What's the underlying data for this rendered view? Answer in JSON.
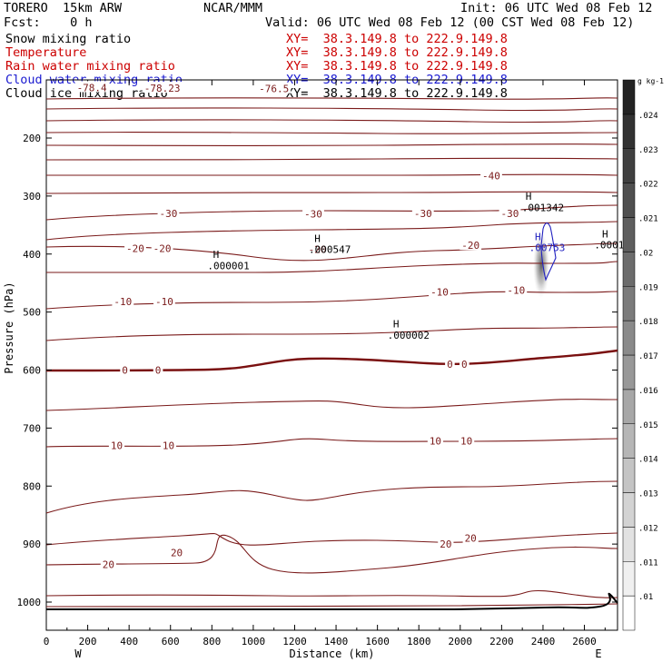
{
  "header": {
    "model": "TORERO  15km ARW",
    "center": "NCAR/MMM",
    "init": "Init: 06 UTC Wed 08 Feb 12",
    "fcst": "Fcst:    0 h",
    "valid": "Valid: 06 UTC Wed 08 Feb 12 (00 CST Wed 08 Feb 12)"
  },
  "fields": [
    {
      "name": "Snow mixing ratio",
      "xy": "XY=  38.3.149.8 to 222.9.149.8",
      "color": "black"
    },
    {
      "name": "Temperature",
      "xy": "XY=  38.3.149.8 to 222.9.149.8",
      "color": "red"
    },
    {
      "name": "Rain water mixing ratio",
      "xy": "XY=  38.3.149.8 to 222.9.149.8",
      "color": "red"
    },
    {
      "name": "Cloud water mixing ratio",
      "xy": "XY=  38.3.149.8 to 222.9.149.8",
      "color": "blue"
    },
    {
      "name": "Cloud ice mixing ratio",
      "xy": "XY=  38.3.149.8 to 222.9.149.8",
      "color": "black"
    }
  ],
  "chart_data": {
    "type": "contour",
    "xlabel": "Distance (km)",
    "ylabel": "Pressure (hPa)",
    "xlim": [
      0,
      2760
    ],
    "ylim": [
      1050,
      100
    ],
    "x_ticks": [
      0,
      200,
      400,
      600,
      800,
      1000,
      1200,
      1400,
      1600,
      1800,
      2000,
      2200,
      2400,
      2600
    ],
    "y_ticks": [
      200,
      300,
      400,
      500,
      600,
      700,
      800,
      900,
      1000
    ],
    "x_end_labels": {
      "left": "W",
      "right": "E"
    },
    "temperature_labels": [
      {
        "text": "-78.4",
        "x": 220,
        "p": 113
      },
      {
        "text": "-78.23",
        "x": 560,
        "p": 114
      },
      {
        "text": "-76.5",
        "x": 1100,
        "p": 115
      },
      {
        "text": "-40",
        "x": 2150,
        "p": 265
      },
      {
        "text": "-30",
        "x": 590,
        "p": 330
      },
      {
        "text": "-30",
        "x": 1290,
        "p": 331
      },
      {
        "text": "-30",
        "x": 1820,
        "p": 330
      },
      {
        "text": "-30",
        "x": 2240,
        "p": 330
      },
      {
        "text": "-20",
        "x": 430,
        "p": 390
      },
      {
        "text": "-20",
        "x": 560,
        "p": 390
      },
      {
        "text": "-20",
        "x": 1310,
        "p": 392
      },
      {
        "text": "-20",
        "x": 2050,
        "p": 385
      },
      {
        "text": "-10",
        "x": 370,
        "p": 482
      },
      {
        "text": "-10",
        "x": 570,
        "p": 482
      },
      {
        "text": "-10",
        "x": 1900,
        "p": 465
      },
      {
        "text": "-10",
        "x": 2270,
        "p": 462
      },
      {
        "text": "0",
        "x": 380,
        "p": 600
      },
      {
        "text": "0",
        "x": 540,
        "p": 600
      },
      {
        "text": "0",
        "x": 1950,
        "p": 590
      },
      {
        "text": "0",
        "x": 2020,
        "p": 590
      },
      {
        "text": "10",
        "x": 340,
        "p": 730
      },
      {
        "text": "10",
        "x": 590,
        "p": 730
      },
      {
        "text": "10",
        "x": 1880,
        "p": 722
      },
      {
        "text": "10",
        "x": 2030,
        "p": 722
      },
      {
        "text": "20",
        "x": 300,
        "p": 935
      },
      {
        "text": "20",
        "x": 630,
        "p": 915
      },
      {
        "text": "20",
        "x": 1930,
        "p": 900
      },
      {
        "text": "20",
        "x": 2050,
        "p": 890
      }
    ],
    "maxima_labels": [
      {
        "text": "H",
        "x": 820,
        "p": 400
      },
      {
        "text": ".000001",
        "x": 880,
        "p": 420
      },
      {
        "text": "H",
        "x": 1310,
        "p": 373
      },
      {
        "text": ".000547",
        "x": 1370,
        "p": 392
      },
      {
        "text": "H",
        "x": 2330,
        "p": 300
      },
      {
        "text": ".001342",
        "x": 2400,
        "p": 320
      },
      {
        "text": "H",
        "x": 2700,
        "p": 365
      },
      {
        "text": ".0001",
        "x": 2720,
        "p": 384
      },
      {
        "text": "H",
        "x": 1690,
        "p": 520
      },
      {
        "text": ".000002",
        "x": 1750,
        "p": 540
      }
    ],
    "cloud_water_labels": [
      {
        "text": "H",
        "x": 2375,
        "p": 370
      },
      {
        "text": ".00753",
        "x": 2420,
        "p": 389
      }
    ],
    "colorbar": {
      "label": "g kg-1",
      "ticks": [
        ".01",
        ".011",
        ".012",
        ".013",
        ".014",
        ".015",
        ".016",
        ".017",
        ".018",
        ".019",
        ".02",
        ".021",
        ".022",
        ".023",
        ".024"
      ]
    }
  }
}
